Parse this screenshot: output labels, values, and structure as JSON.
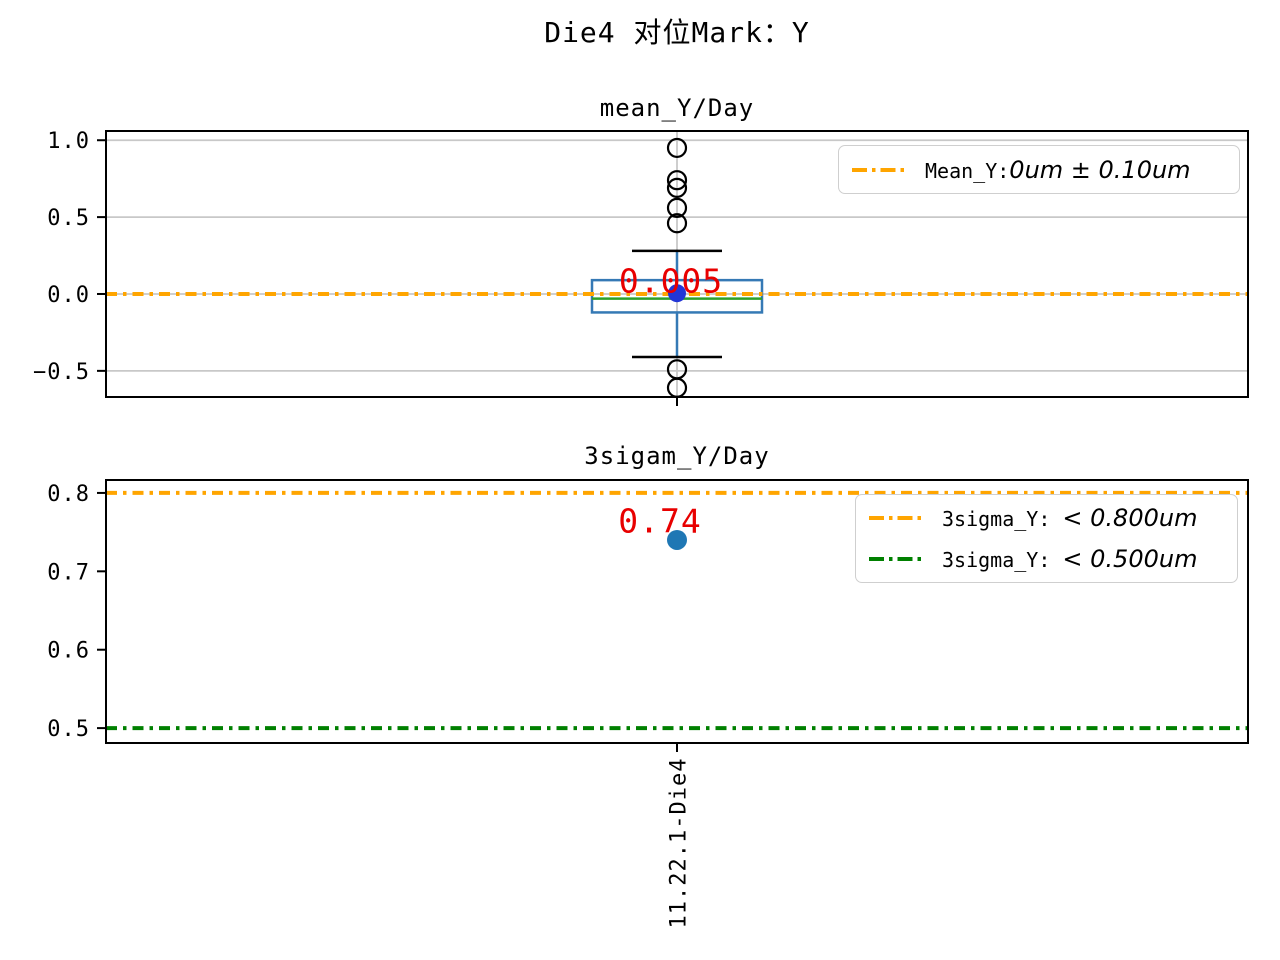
{
  "figure": {
    "title": "Die4 对位Mark：Y",
    "background": "#ffffff"
  },
  "chart_data": [
    {
      "type": "boxplot",
      "title": "mean_Y/Day",
      "categories": [
        "11.22.1-Die4"
      ],
      "ylim": [
        -0.67,
        1.06
      ],
      "yticks": [
        1.0,
        0.5,
        0.0,
        -0.5
      ],
      "ytick_labels": [
        "1.0",
        "0.5",
        "0.0",
        "−0.5"
      ],
      "grid": "both",
      "grid_color": "#c8c8c8",
      "series": [
        {
          "name": "mean_Y",
          "box": {
            "q1": -0.12,
            "median": -0.03,
            "q3": 0.09,
            "whisker_low": -0.41,
            "whisker_high": 0.28,
            "mean": 0.005,
            "outliers": [
              0.95,
              0.74,
              0.69,
              0.56,
              0.46,
              -0.49,
              -0.61
            ]
          },
          "box_color": "#3579b5",
          "whisker_color": "#3579b5",
          "cap_color": "#000000",
          "median_color": "#2ca02c",
          "mean_marker_color": "#2236d6"
        }
      ],
      "ref_lines": [
        {
          "value": 0.0,
          "color": "#ffa500",
          "style": "dashdot"
        }
      ],
      "annotation": {
        "text": "0.005",
        "color": "#e80000"
      },
      "legend": [
        {
          "prefix": "Mean_Y:",
          "math": "0um ± 0.10um",
          "line_color": "#ffa500"
        }
      ]
    },
    {
      "type": "scatter",
      "title": "3sigam_Y/Day",
      "categories": [
        "11.22.1-Die4"
      ],
      "ylim": [
        0.481,
        0.8165
      ],
      "yticks": [
        0.8,
        0.7,
        0.6,
        0.5
      ],
      "ytick_labels": [
        "0.8",
        "0.7",
        "0.6",
        "0.5"
      ],
      "grid": "none",
      "series": [
        {
          "name": "3sigma_Y",
          "values": [
            0.74
          ],
          "marker_color": "#1f77b4"
        }
      ],
      "ref_lines": [
        {
          "value": 0.8,
          "color": "#ffa500",
          "style": "dashdot"
        },
        {
          "value": 0.5,
          "color": "#008000",
          "style": "dashdot"
        }
      ],
      "annotation": {
        "text": "0.74",
        "color": "#e80000"
      },
      "legend": [
        {
          "prefix": "3sigma_Y: ",
          "math": "< 0.800um",
          "line_color": "#ffa500"
        },
        {
          "prefix": "3sigma_Y: ",
          "math": "< 0.500um",
          "line_color": "#008000"
        }
      ]
    }
  ]
}
